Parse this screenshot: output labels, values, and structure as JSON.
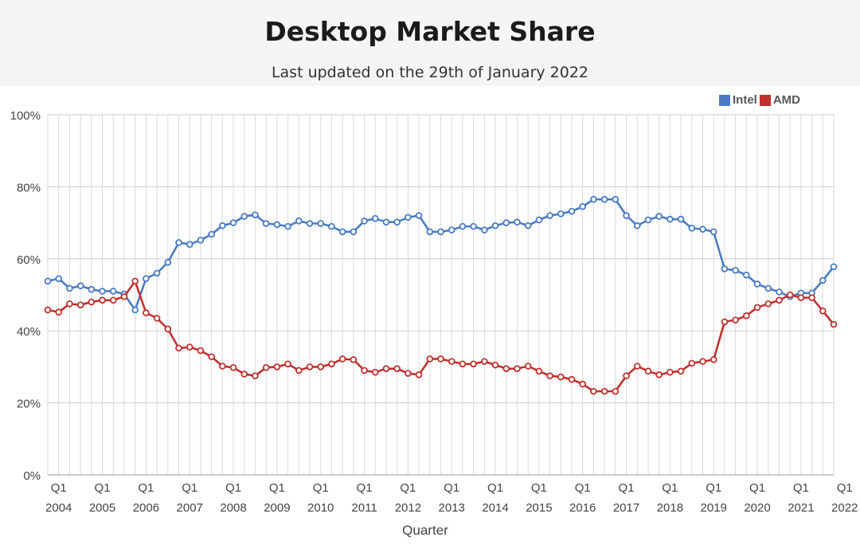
{
  "header": {
    "title": "Desktop Market Share",
    "subtitle": "Last updated on the 29th of January 2022"
  },
  "chart_data": {
    "type": "line",
    "title": "Desktop Market Share",
    "subtitle": "Last updated on the 29th of January 2022",
    "xlabel": "Quarter",
    "ylabel": "",
    "ylim": [
      0,
      100
    ],
    "y_ticks": [
      "0%",
      "20%",
      "40%",
      "60%",
      "80%",
      "100%"
    ],
    "x_tick_labels": [
      {
        "q": "Q1",
        "year": "2004"
      },
      {
        "q": "Q1",
        "year": "2005"
      },
      {
        "q": "Q1",
        "year": "2006"
      },
      {
        "q": "Q1",
        "year": "2007"
      },
      {
        "q": "Q1",
        "year": "2008"
      },
      {
        "q": "Q1",
        "year": "2009"
      },
      {
        "q": "Q1",
        "year": "2010"
      },
      {
        "q": "Q1",
        "year": "2011"
      },
      {
        "q": "Q1",
        "year": "2012"
      },
      {
        "q": "Q1",
        "year": "2013"
      },
      {
        "q": "Q1",
        "year": "2014"
      },
      {
        "q": "Q1",
        "year": "2015"
      },
      {
        "q": "Q1",
        "year": "2016"
      },
      {
        "q": "Q1",
        "year": "2017"
      },
      {
        "q": "Q1",
        "year": "2018"
      },
      {
        "q": "Q1",
        "year": "2019"
      },
      {
        "q": "Q1",
        "year": "2020"
      },
      {
        "q": "Q1",
        "year": "2021"
      },
      {
        "q": "Q1",
        "year": "2022"
      }
    ],
    "grid": true,
    "legend_position": "top-right",
    "series": [
      {
        "name": "Intel",
        "color": "#4a7bc4",
        "values": [
          53.8,
          54.5,
          51.8,
          52.5,
          51.5,
          51.0,
          51.0,
          50.2,
          45.8,
          54.5,
          56.0,
          59.0,
          64.5,
          64.0,
          65.2,
          66.8,
          69.2,
          70.0,
          71.8,
          72.2,
          69.8,
          69.5,
          69.0,
          70.5,
          69.8,
          69.8,
          69.0,
          67.5,
          67.5,
          70.5,
          71.2,
          70.2,
          70.2,
          71.5,
          72.0,
          67.5,
          67.5,
          68.0,
          69.0,
          69.0,
          68.0,
          69.2,
          70.0,
          70.2,
          69.2,
          70.8,
          72.0,
          72.5,
          73.2,
          74.5,
          76.5,
          76.5,
          76.5,
          72.0,
          69.2,
          70.8,
          71.8,
          71.0,
          71.0,
          68.5,
          68.2,
          67.5,
          57.2,
          56.8,
          55.5,
          53.0,
          51.8,
          50.8,
          49.5,
          50.5,
          50.5,
          54.0,
          57.8
        ]
      },
      {
        "name": "AMD",
        "color": "#c0312f",
        "values": [
          45.8,
          45.2,
          47.5,
          47.2,
          48.0,
          48.5,
          48.5,
          49.5,
          53.8,
          45.0,
          43.5,
          40.5,
          35.2,
          35.5,
          34.5,
          32.8,
          30.2,
          29.8,
          28.0,
          27.5,
          29.8,
          30.0,
          30.8,
          29.0,
          30.0,
          30.0,
          30.8,
          32.2,
          32.0,
          29.0,
          28.5,
          29.5,
          29.5,
          28.2,
          27.8,
          32.2,
          32.2,
          31.5,
          30.8,
          30.8,
          31.5,
          30.5,
          29.5,
          29.5,
          30.2,
          28.8,
          27.5,
          27.2,
          26.5,
          25.2,
          23.2,
          23.2,
          23.2,
          27.5,
          30.2,
          28.8,
          27.8,
          28.5,
          28.8,
          31.0,
          31.5,
          32.0,
          42.5,
          43.0,
          44.2,
          46.5,
          47.5,
          48.5,
          50.0,
          49.2,
          49.2,
          45.5,
          41.8
        ]
      }
    ]
  }
}
